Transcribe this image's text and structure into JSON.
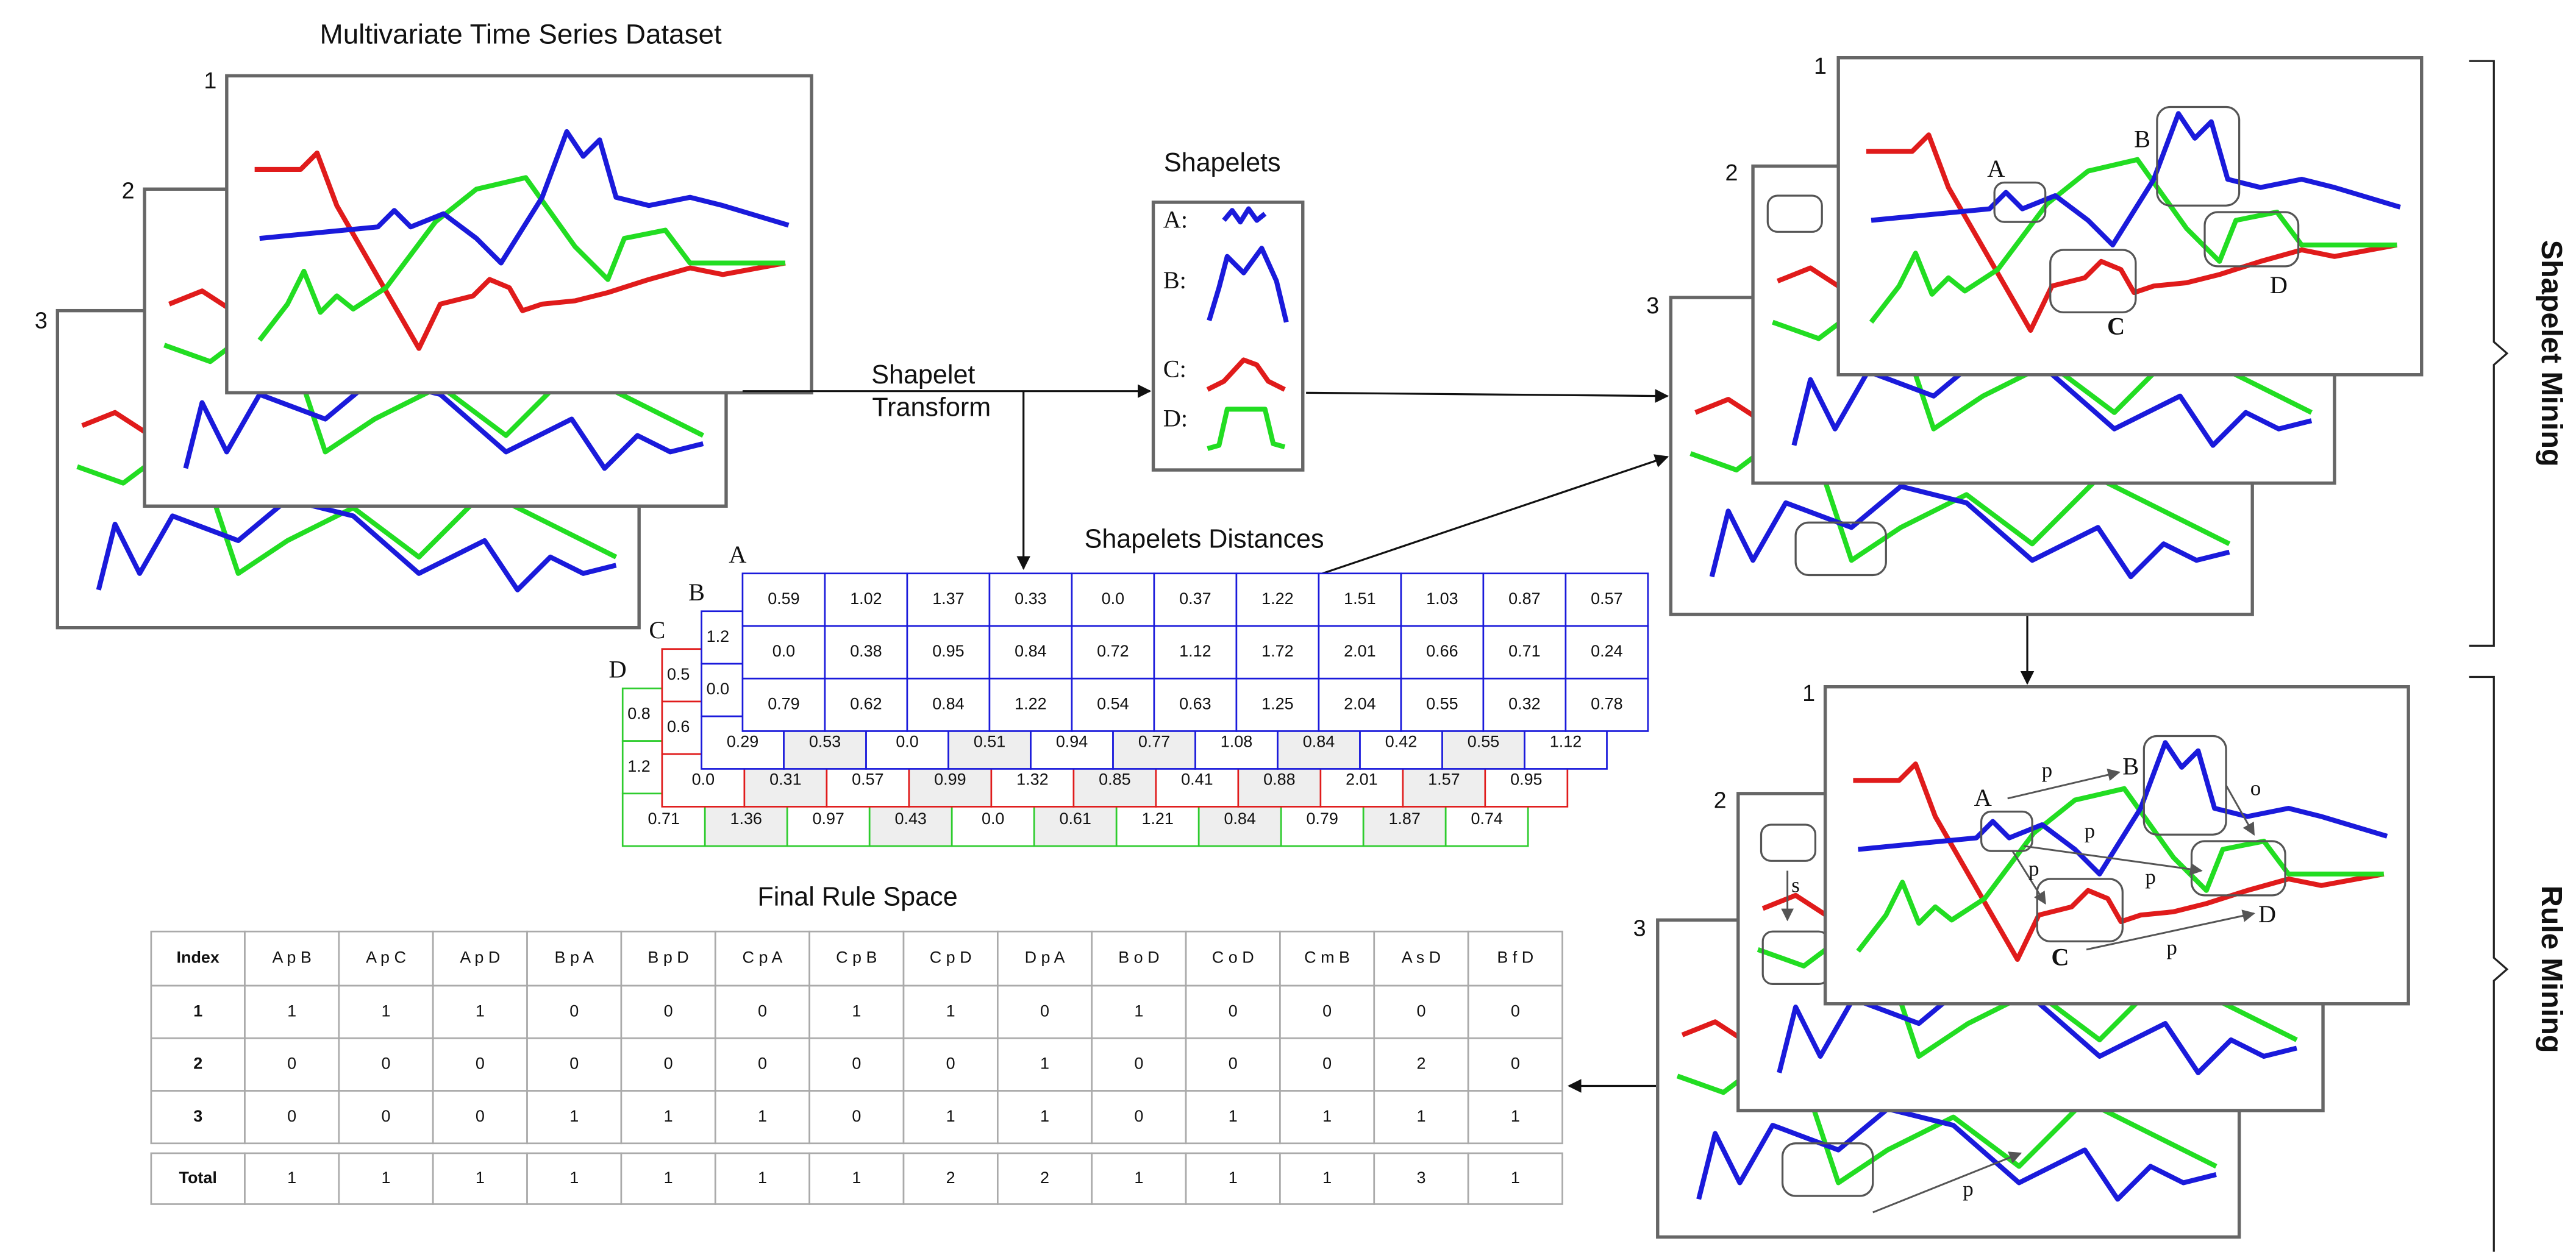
{
  "dataset": {
    "title": "Multivariate Time Series Dataset",
    "stack_labels": [
      "1",
      "2",
      "3"
    ]
  },
  "transform": {
    "label_lines": [
      "Shapelet",
      "Transform"
    ]
  },
  "shapelets": {
    "title": "Shapelets",
    "labels": [
      "A:",
      "B:",
      "C:",
      "D:"
    ]
  },
  "distances": {
    "title": "Shapelets Distances",
    "tables": [
      {
        "label": "A",
        "rows": [
          [
            "0.59",
            "1.02",
            "1.37",
            "0.33",
            "0.0",
            "0.37",
            "1.22",
            "1.51",
            "1.03",
            "0.87",
            "0.57"
          ],
          [
            "0.0",
            "0.38",
            "0.95",
            "0.84",
            "0.72",
            "1.12",
            "1.72",
            "2.01",
            "0.66",
            "0.71",
            "0.24"
          ],
          [
            "0.79",
            "0.62",
            "0.84",
            "1.22",
            "0.54",
            "0.63",
            "1.25",
            "2.04",
            "0.55",
            "0.32",
            "0.78"
          ]
        ]
      },
      {
        "label": "B",
        "rows": [
          [
            "1.2"
          ],
          [
            "0.0"
          ],
          [
            "0.29",
            "0.53",
            "0.0",
            "0.51",
            "0.94",
            "0.77",
            "1.08",
            "0.84",
            "0.42",
            "0.55",
            "1.12"
          ]
        ]
      },
      {
        "label": "C",
        "rows": [
          [
            "0.5"
          ],
          [
            "0.6"
          ],
          [
            "0.0",
            "0.31",
            "0.57",
            "0.99",
            "1.32",
            "0.85",
            "0.41",
            "0.88",
            "2.01",
            "1.57",
            "0.95"
          ]
        ]
      },
      {
        "label": "D",
        "rows": [
          [
            "0.8"
          ],
          [
            "1.2"
          ],
          [
            "0.71",
            "1.36",
            "0.97",
            "0.43",
            "0.0",
            "0.61",
            "1.21",
            "0.84",
            "0.79",
            "1.87",
            "0.74"
          ]
        ]
      }
    ]
  },
  "rule_space": {
    "title": "Final Rule Space",
    "header": [
      "Index",
      "A p B",
      "A p C",
      "A p D",
      "B p A",
      "B p D",
      "C p A",
      "C p B",
      "C p D",
      "D p A",
      "B o D",
      "C o D",
      "C m B",
      "A s D",
      "B f D"
    ],
    "rows": [
      [
        "1",
        1,
        1,
        1,
        0,
        0,
        0,
        1,
        1,
        0,
        1,
        0,
        0,
        0,
        0
      ],
      [
        "2",
        0,
        0,
        0,
        0,
        0,
        0,
        0,
        0,
        1,
        0,
        0,
        0,
        2,
        0
      ],
      [
        "3",
        0,
        0,
        0,
        1,
        1,
        1,
        0,
        1,
        1,
        0,
        1,
        1,
        1,
        1
      ]
    ],
    "total": [
      "Total",
      1,
      1,
      1,
      1,
      1,
      1,
      1,
      2,
      2,
      1,
      1,
      1,
      3,
      1
    ]
  },
  "shapelet_mining": {
    "label": "Shapelet Mining",
    "stack_labels": [
      "1",
      "2",
      "3"
    ],
    "annotations": [
      "A",
      "B",
      "C",
      "D"
    ]
  },
  "rule_mining": {
    "label": "Rule Mining",
    "stack_labels": [
      "1",
      "2",
      "3"
    ],
    "annotations": [
      "A",
      "B",
      "C",
      "D"
    ],
    "relations": [
      "p",
      "p",
      "p",
      "p",
      "p",
      "o",
      "s",
      "p"
    ]
  }
}
